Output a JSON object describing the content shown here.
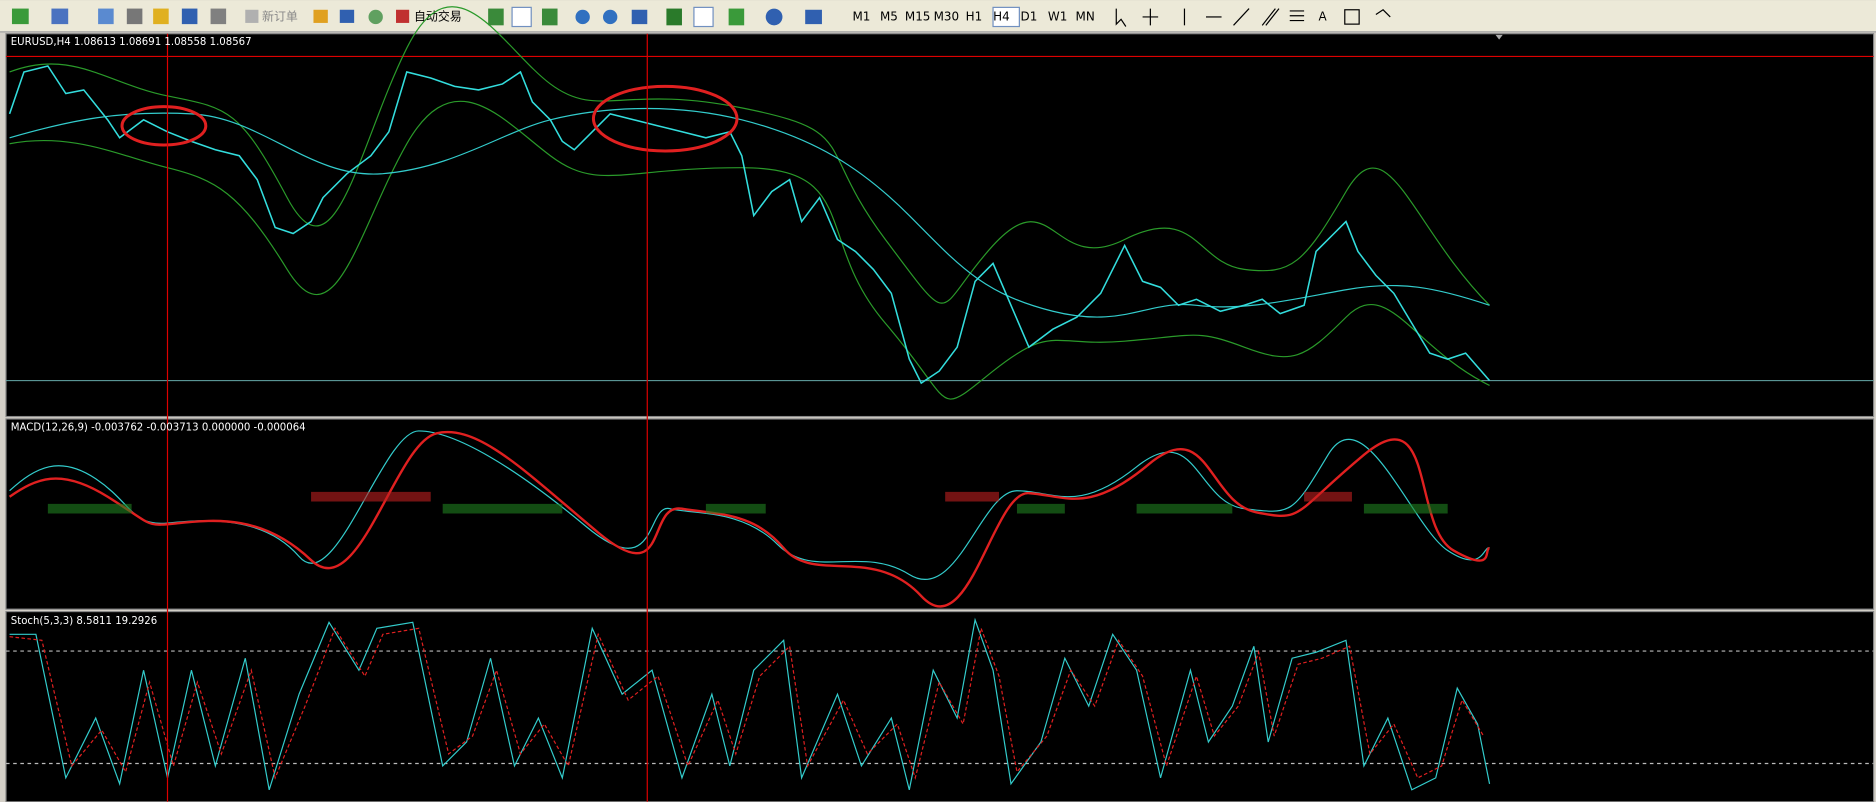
{
  "toolbar": {
    "new_order": "新订单",
    "auto_trading": "自动交易",
    "timeframes": [
      "M1",
      "M5",
      "M15",
      "M30",
      "H1",
      "H4",
      "D1",
      "W1",
      "MN"
    ],
    "text_tool": "A"
  },
  "windows": [
    {
      "header": "EURUSD,H4  1.08613 1.08691 1.08558 1.08567"
    },
    {
      "header": "MACD(12,26,9) -0.003762 -0.003713 0.000000 -0.000064"
    },
    {
      "header": "Stoch(5,3,3) 8.5811 19.2926"
    }
  ]
}
